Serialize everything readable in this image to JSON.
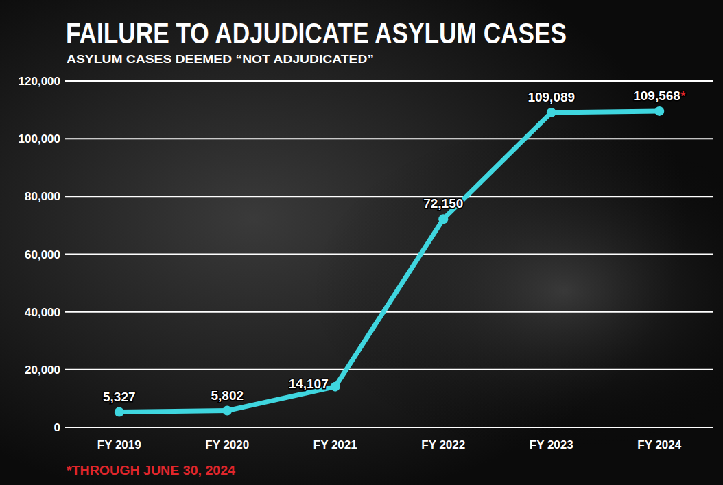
{
  "chart_data": {
    "type": "line",
    "title": "FAILURE TO ADJUDICATE ASYLUM CASES",
    "subtitle": "ASYLUM CASES DEEMED “NOT ADJUDICATED”",
    "annotations": [
      "*THROUGH JUNE 30, 2024"
    ],
    "categories": [
      "FY 2019",
      "FY 2020",
      "FY 2021",
      "FY 2022",
      "FY 2023",
      "FY 2024"
    ],
    "values": [
      5327,
      5802,
      14107,
      72150,
      109089,
      109568
    ],
    "value_labels": [
      "5,327",
      "5,802",
      "14,107",
      "72,150",
      "109,089",
      "109,568*"
    ],
    "color": "#3fd6df",
    "marker": "circle",
    "ylim": [
      0,
      120000
    ],
    "yticks": [
      0,
      {
        "value": 20000,
        "label": "20,000"
      },
      {
        "value": 40000,
        "label": "40,000"
      },
      {
        "value": 60000,
        "label": "60,000"
      },
      {
        "value": 80000,
        "label": "80,000"
      },
      {
        "value": 100000,
        "label": "100,000"
      },
      {
        "value": 120000,
        "label": "120,000"
      }
    ],
    "grid": true,
    "data_labels": true
  }
}
